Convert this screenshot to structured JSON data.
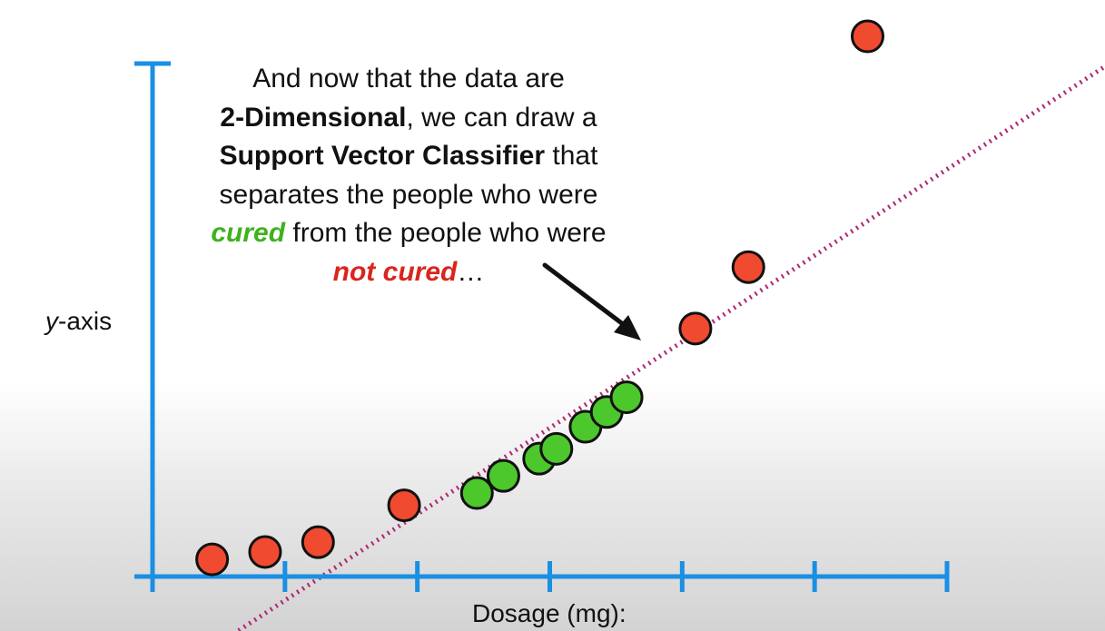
{
  "annotation": {
    "line1": "And now that the data are",
    "line2_bold": "2-Dimensional",
    "line2_rest": ", we can draw a",
    "line3_bold": "Support Vector Classifier",
    "line3_rest": " that",
    "line4": "separates the people who were",
    "line5_cured": "cured",
    "line5_rest": " from the people who were",
    "line6_notcured": "not cured",
    "line6_rest": "…"
  },
  "colors": {
    "axis": "#1a8fe3",
    "cured": "#4cc72c",
    "not_cured": "#f04a31",
    "classifier": "#b0246e"
  },
  "chart_data": {
    "type": "scatter",
    "xlabel": "Dosage (mg):",
    "ylabel_italic": "y",
    "ylabel_rest": "-axis",
    "x_ticks": 6,
    "series": [
      {
        "name": "not cured",
        "color": "#f04a31",
        "points": [
          {
            "x": 0.45,
            "y": 0.07
          },
          {
            "x": 0.85,
            "y": 0.1
          },
          {
            "x": 1.25,
            "y": 0.14
          },
          {
            "x": 1.9,
            "y": 0.29
          },
          {
            "x": 4.1,
            "y": 1.01
          },
          {
            "x": 4.5,
            "y": 1.26
          },
          {
            "x": 5.4,
            "y": 2.2
          }
        ]
      },
      {
        "name": "cured",
        "color": "#4cc72c",
        "points": [
          {
            "x": 2.45,
            "y": 0.34
          },
          {
            "x": 2.65,
            "y": 0.41
          },
          {
            "x": 2.92,
            "y": 0.48
          },
          {
            "x": 3.05,
            "y": 0.52
          },
          {
            "x": 3.27,
            "y": 0.61
          },
          {
            "x": 3.43,
            "y": 0.67
          },
          {
            "x": 3.58,
            "y": 0.73
          }
        ]
      }
    ],
    "classifier_line": {
      "style": "dotted",
      "from": {
        "x": 0.65,
        "y": -0.22
      },
      "to": {
        "x": 7.4,
        "y": 2.15
      }
    },
    "xlim": [
      0,
      6
    ],
    "ylim": [
      0,
      2.2
    ],
    "grid": false,
    "legend": "none"
  }
}
